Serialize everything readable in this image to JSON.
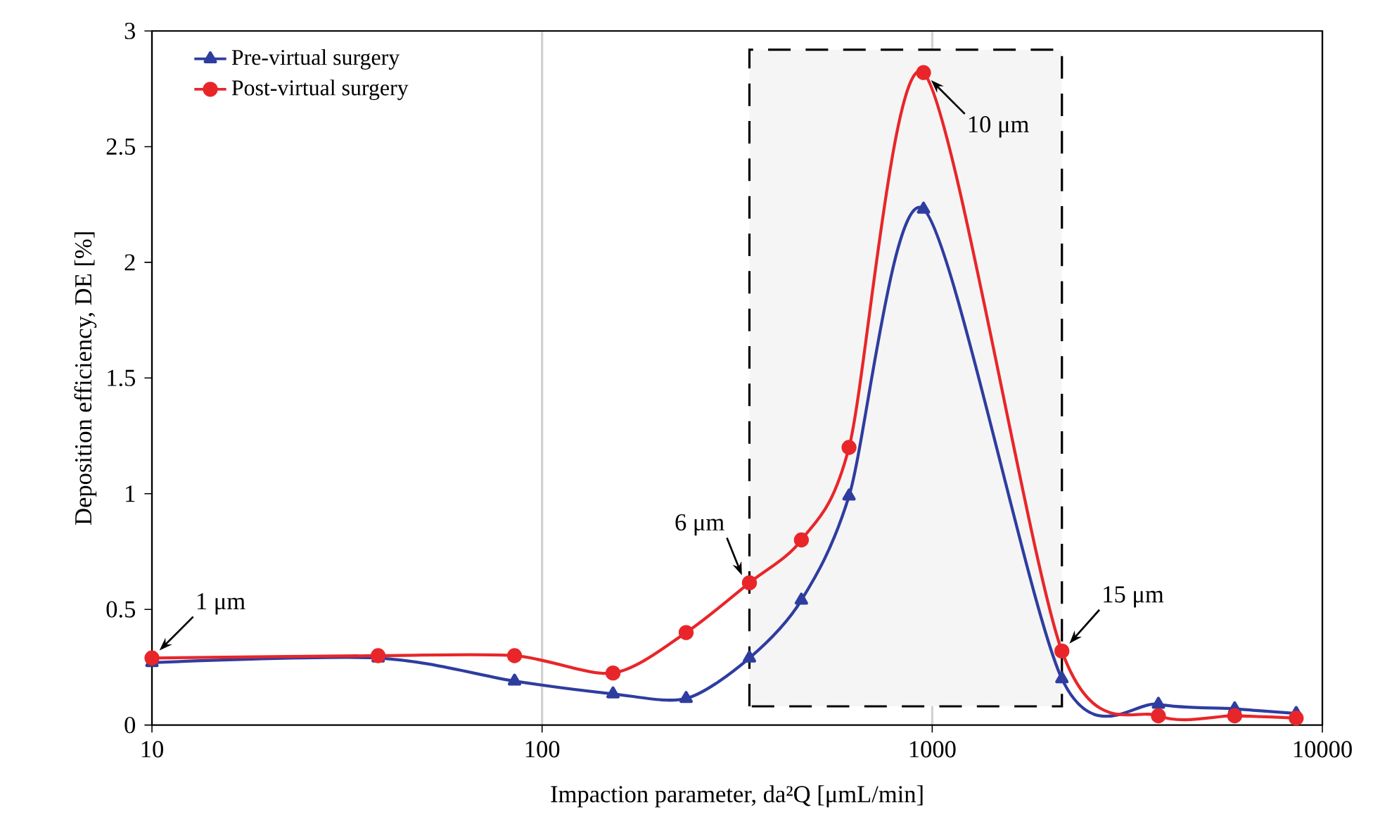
{
  "chart_data": {
    "type": "line",
    "xlabel": "Impaction parameter, da²Q [μmL/min]",
    "ylabel": "Deposition efficiency, DE [%]",
    "log": "x",
    "grid": "x",
    "legend": "top left",
    "xlim": [
      10,
      10000
    ],
    "xticks": [
      10,
      100,
      1000,
      10000
    ],
    "ylim": [
      0,
      3
    ],
    "yticks": [
      0,
      0.5,
      1,
      1.5,
      2,
      2.5,
      3
    ],
    "series": [
      {
        "name": "Pre-virtual surgery",
        "color": "#2e3d9f",
        "marker": "triangle",
        "x": [
          10,
          38,
          85,
          152,
          234,
          340,
          462,
          612,
          950,
          2150,
          3800,
          5960,
          8570
        ],
        "values": [
          0.27,
          0.29,
          0.19,
          0.135,
          0.115,
          0.29,
          0.54,
          0.99,
          2.23,
          0.2,
          0.09,
          0.07,
          0.05
        ]
      },
      {
        "name": "Post-virtual surgery",
        "color": "#e8262a",
        "marker": "circle",
        "x": [
          10,
          38,
          85,
          152,
          234,
          340,
          462,
          612,
          950,
          2150,
          3800,
          5960,
          8570
        ],
        "values": [
          0.29,
          0.3,
          0.3,
          0.225,
          0.4,
          0.615,
          0.8,
          1.2,
          2.82,
          0.32,
          0.04,
          0.04,
          0.03
        ]
      }
    ],
    "bands": [
      {
        "axis": "x",
        "from": 340,
        "to": 2150
      }
    ],
    "annotations": [
      {
        "text": "1 μm",
        "x": 10,
        "y": 0.29
      },
      {
        "text": "6 μm",
        "x": 340,
        "y": 0.615
      },
      {
        "text": "10 μm",
        "x": 950,
        "y": 2.82
      },
      {
        "text": "15 μm",
        "x": 2150,
        "y": 0.32
      }
    ]
  }
}
